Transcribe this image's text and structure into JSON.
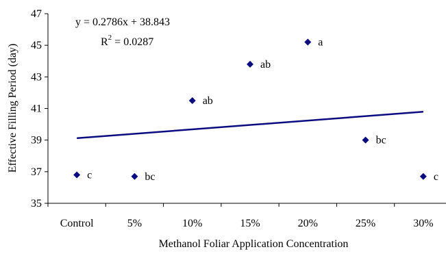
{
  "chart_data": {
    "type": "scatter",
    "xlabel": "Methanol Foliar Application Concentration",
    "ylabel": "Effective Filling Period (day)",
    "categories": [
      "Control",
      "5%",
      "10%",
      "15%",
      "20%",
      "25%",
      "30%"
    ],
    "ylim": [
      35,
      47
    ],
    "yticks": [
      35,
      37,
      39,
      41,
      43,
      45,
      47
    ],
    "grid": false,
    "points": [
      {
        "category": "Control",
        "y": 36.8,
        "label": "c"
      },
      {
        "category": "5%",
        "y": 36.7,
        "label": "bc"
      },
      {
        "category": "10%",
        "y": 41.5,
        "label": "ab"
      },
      {
        "category": "15%",
        "y": 43.8,
        "label": "ab"
      },
      {
        "category": "20%",
        "y": 45.2,
        "label": "a"
      },
      {
        "category": "25%",
        "y": 39.0,
        "label": "bc"
      },
      {
        "category": "30%",
        "y": 36.7,
        "label": "c"
      }
    ],
    "trendline": {
      "slope": 0.2786,
      "intercept": 38.843
    },
    "annotations": {
      "equation": "y = 0.2786x + 38.843",
      "r2_prefix": "R",
      "r2_sup": "2",
      "r2_suffix": " = 0.0287"
    },
    "colors": {
      "marker": "#0b0b80",
      "trendline": "#0b0b80"
    }
  }
}
